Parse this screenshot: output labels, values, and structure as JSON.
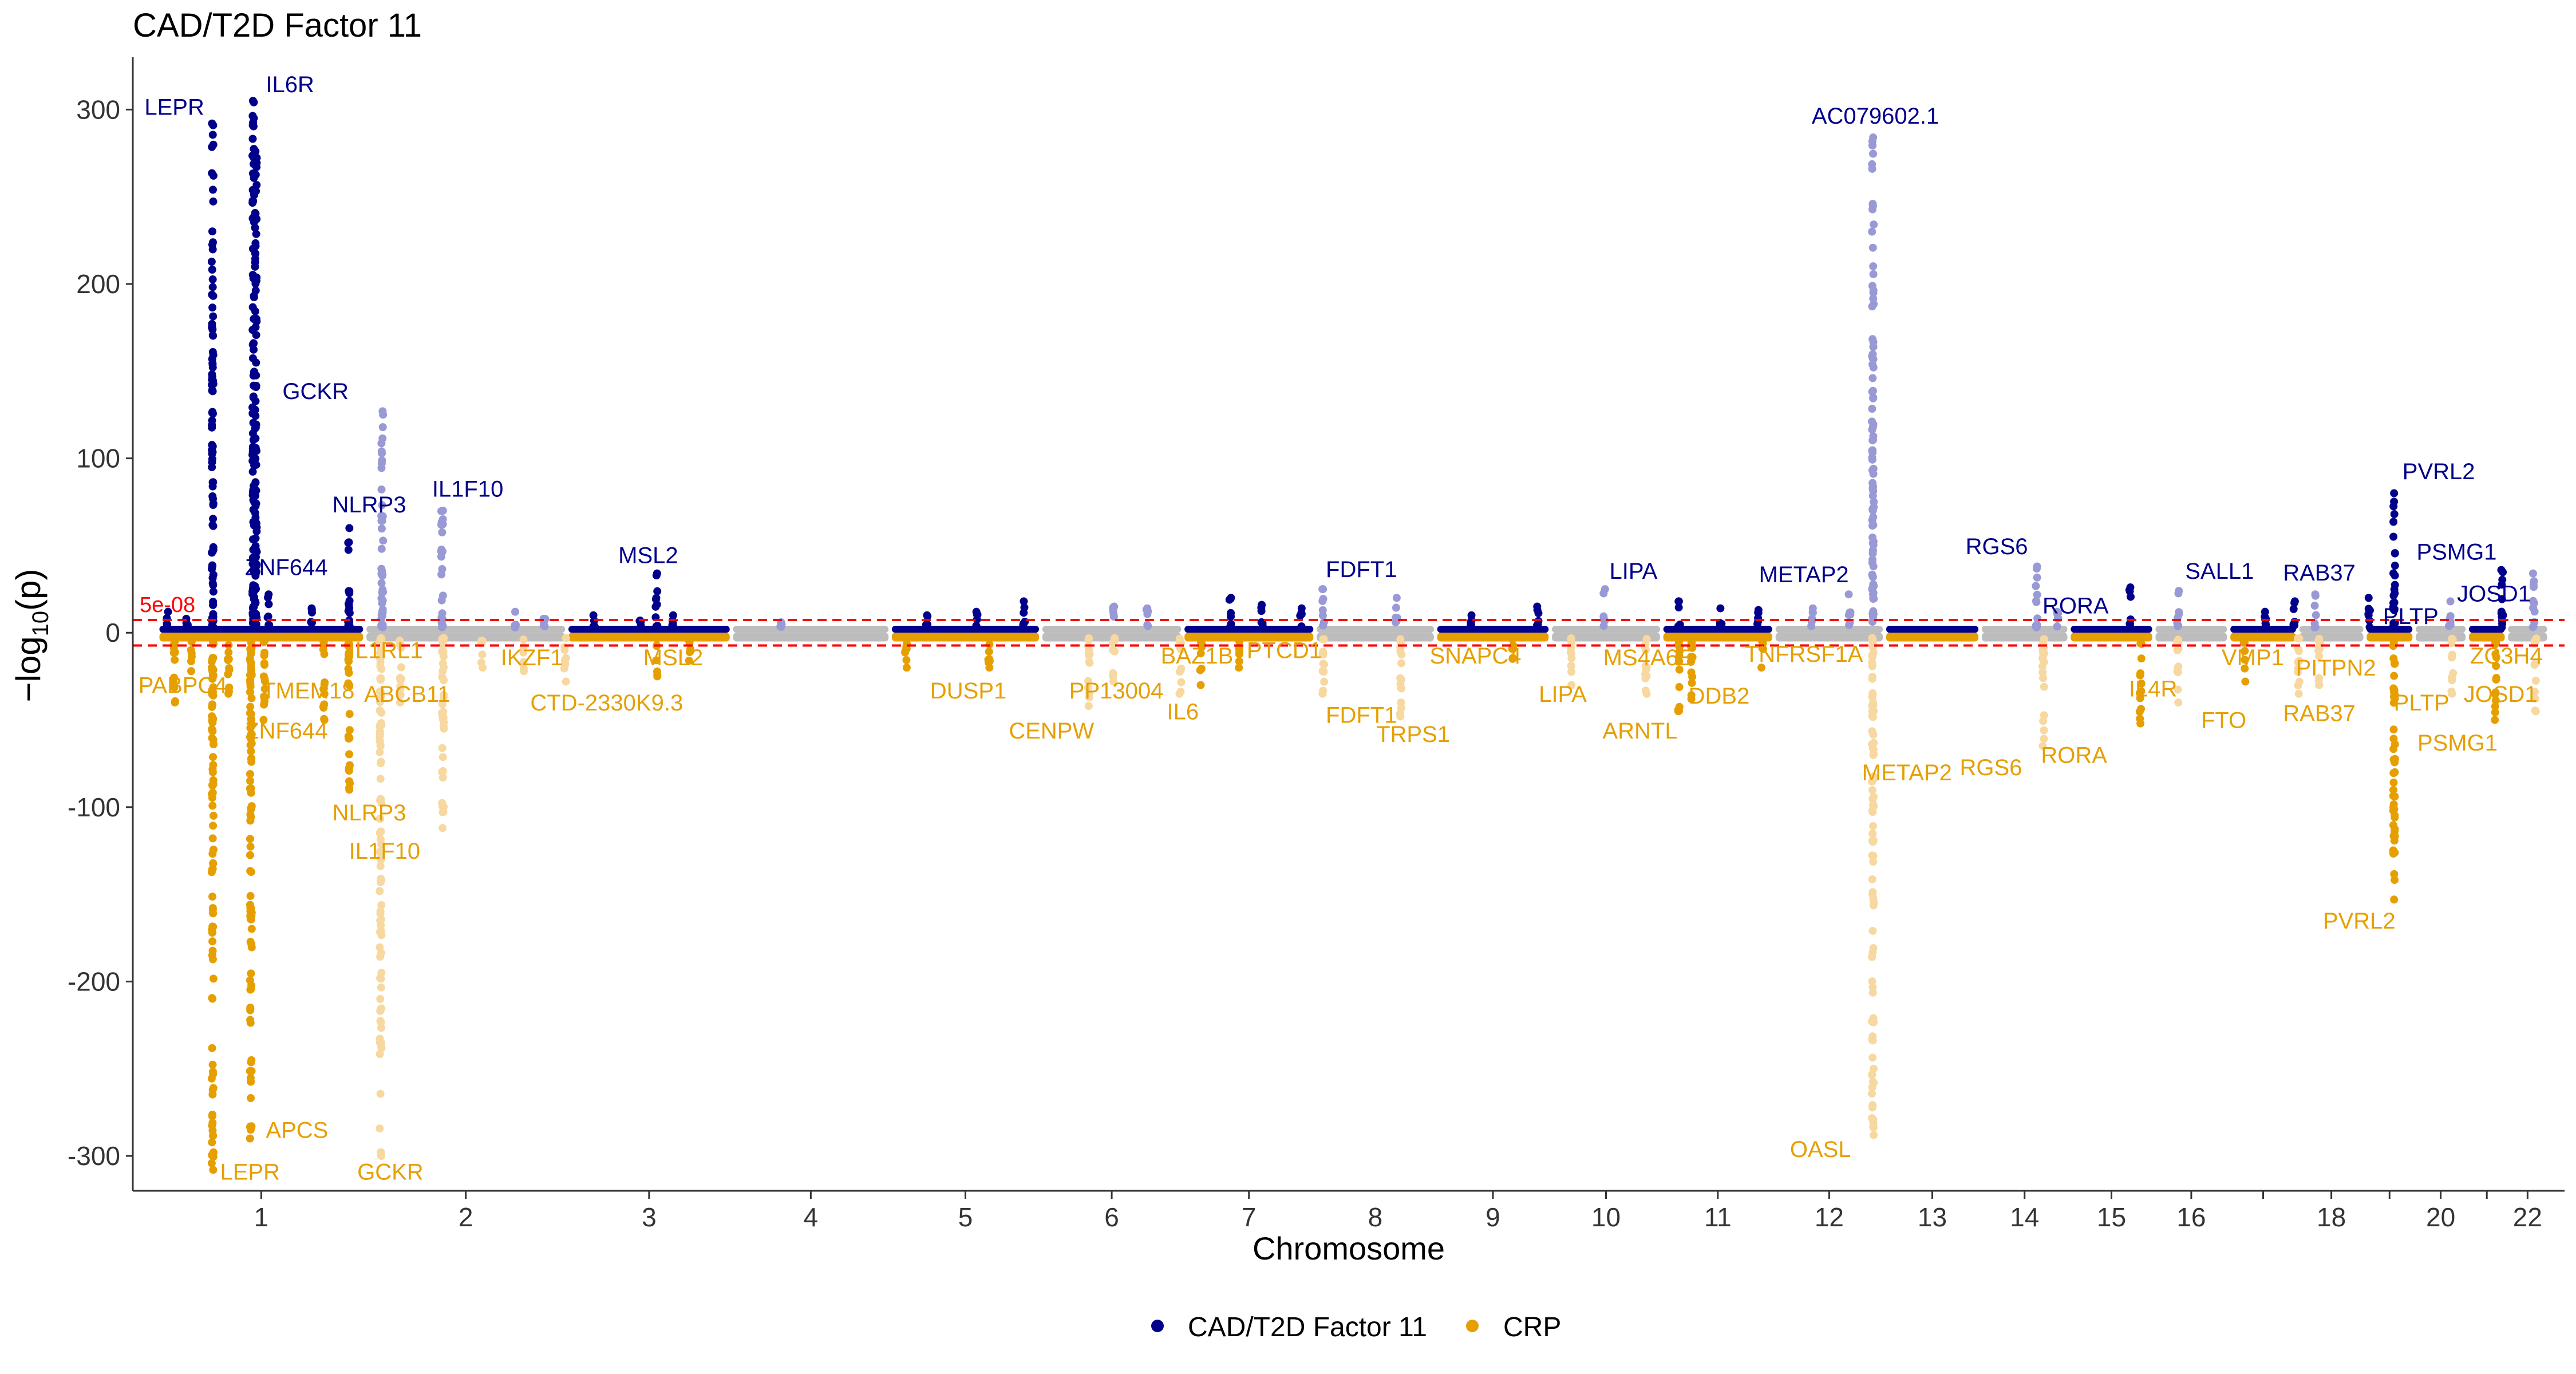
{
  "chart_data": {
    "type": "scatter",
    "subtype": "miami",
    "title": "CAD/T2D Factor 11",
    "xlabel": "Chromosome",
    "ylabel_prefix": "−log",
    "ylabel_sub": "10",
    "ylabel_suffix": "(p)",
    "ylim": [
      -320,
      330
    ],
    "yticks": [
      {
        "value": 300,
        "label": "300"
      },
      {
        "value": 200,
        "label": "200"
      },
      {
        "value": 100,
        "label": "100"
      },
      {
        "value": 0,
        "label": "0"
      },
      {
        "value": -100,
        "label": "-100"
      },
      {
        "value": -200,
        "label": "-200"
      },
      {
        "value": -300,
        "label": "-300"
      }
    ],
    "threshold": {
      "label": "5e-08",
      "value": 7.3
    },
    "colors": {
      "top_dark": "#00008B",
      "top_light": "#9999D6",
      "bottom_dark": "#E69F00",
      "bottom_light": "#F7D8A0",
      "baseline": "#BDBDBD",
      "threshold": "#FF0000",
      "axis": "#333333",
      "title": "#000000"
    },
    "chromosomes": [
      {
        "chr": "1",
        "start": 0,
        "end": 249,
        "label": "1",
        "tick": true
      },
      {
        "chr": "2",
        "start": 249,
        "end": 492,
        "label": "2",
        "tick": true
      },
      {
        "chr": "3",
        "start": 492,
        "end": 690,
        "label": "3",
        "tick": true
      },
      {
        "chr": "4",
        "start": 690,
        "end": 881,
        "label": "4",
        "tick": true
      },
      {
        "chr": "5",
        "start": 881,
        "end": 1062,
        "label": "5",
        "tick": true
      },
      {
        "chr": "6",
        "start": 1062,
        "end": 1233,
        "label": "6",
        "tick": true
      },
      {
        "chr": "7",
        "start": 1233,
        "end": 1392,
        "label": "7",
        "tick": true
      },
      {
        "chr": "8",
        "start": 1392,
        "end": 1537,
        "label": "8",
        "tick": false
      },
      {
        "chr": "9",
        "start": 1537,
        "end": 1675,
        "label": "9",
        "tick": true
      },
      {
        "chr": "10",
        "start": 1675,
        "end": 1809,
        "label": "10",
        "tick": true
      },
      {
        "chr": "11",
        "start": 1809,
        "end": 1944,
        "label": "11",
        "tick": true
      },
      {
        "chr": "12",
        "start": 1944,
        "end": 2077,
        "label": "12",
        "tick": true
      },
      {
        "chr": "13",
        "start": 2077,
        "end": 2192,
        "label": "13",
        "tick": true
      },
      {
        "chr": "14",
        "start": 2192,
        "end": 2299,
        "label": "14",
        "tick": true
      },
      {
        "chr": "15",
        "start": 2299,
        "end": 2401,
        "label": "15",
        "tick": true
      },
      {
        "chr": "16",
        "start": 2401,
        "end": 2491,
        "label": "16",
        "tick": true
      },
      {
        "chr": "17",
        "start": 2491,
        "end": 2574,
        "label": "",
        "tick": true
      },
      {
        "chr": "18",
        "start": 2574,
        "end": 2655,
        "label": "18",
        "tick": true
      },
      {
        "chr": "19",
        "start": 2655,
        "end": 2714,
        "label": "",
        "tick": true
      },
      {
        "chr": "20",
        "start": 2714,
        "end": 2778,
        "label": "20",
        "tick": true
      },
      {
        "chr": "21",
        "start": 2778,
        "end": 2825,
        "label": "",
        "tick": true
      },
      {
        "chr": "22",
        "start": 2825,
        "end": 2876,
        "label": "22",
        "tick": true
      }
    ],
    "xlim": [
      -30,
      2895
    ],
    "series": [
      {
        "name": "CAD/T2D Factor 11",
        "direction": "up",
        "background_height": 4,
        "peaks": [
          {
            "pos": 12,
            "max": 12
          },
          {
            "pos": 35,
            "max": 8
          },
          {
            "pos": 66,
            "max": 292
          },
          {
            "pos": 115,
            "max": 305
          },
          {
            "pos": 118,
            "max": 276
          },
          {
            "pos": 133,
            "max": 22
          },
          {
            "pos": 185,
            "max": 14
          },
          {
            "pos": 230,
            "max": 60
          },
          {
            "pos": 270,
            "max": 127
          },
          {
            "pos": 342,
            "max": 70
          },
          {
            "pos": 430,
            "max": 12
          },
          {
            "pos": 465,
            "max": 8
          },
          {
            "pos": 525,
            "max": 10
          },
          {
            "pos": 580,
            "max": 7
          },
          {
            "pos": 600,
            "max": 34
          },
          {
            "pos": 620,
            "max": 10
          },
          {
            "pos": 750,
            "max": 6
          },
          {
            "pos": 925,
            "max": 10
          },
          {
            "pos": 985,
            "max": 12
          },
          {
            "pos": 1042,
            "max": 18
          },
          {
            "pos": 1150,
            "max": 15
          },
          {
            "pos": 1190,
            "max": 14
          },
          {
            "pos": 1290,
            "max": 20
          },
          {
            "pos": 1328,
            "max": 16
          },
          {
            "pos": 1375,
            "max": 14
          },
          {
            "pos": 1402,
            "max": 25
          },
          {
            "pos": 1490,
            "max": 20
          },
          {
            "pos": 1580,
            "max": 10
          },
          {
            "pos": 1660,
            "max": 15
          },
          {
            "pos": 1740,
            "max": 25
          },
          {
            "pos": 1830,
            "max": 18
          },
          {
            "pos": 1880,
            "max": 14
          },
          {
            "pos": 1925,
            "max": 13
          },
          {
            "pos": 1990,
            "max": 14
          },
          {
            "pos": 2035,
            "max": 22
          },
          {
            "pos": 2063,
            "max": 284
          },
          {
            "pos": 2260,
            "max": 38
          },
          {
            "pos": 2285,
            "max": 12
          },
          {
            "pos": 2372,
            "max": 26
          },
          {
            "pos": 2430,
            "max": 24
          },
          {
            "pos": 2535,
            "max": 12
          },
          {
            "pos": 2570,
            "max": 18
          },
          {
            "pos": 2595,
            "max": 22
          },
          {
            "pos": 2660,
            "max": 20
          },
          {
            "pos": 2690,
            "max": 80
          },
          {
            "pos": 2757,
            "max": 18
          },
          {
            "pos": 2820,
            "max": 36
          },
          {
            "pos": 2858,
            "max": 34
          }
        ],
        "labels": [
          {
            "text": "LEPR",
            "pos": 20,
            "value": 297,
            "anchor": "middle"
          },
          {
            "text": "IL6R",
            "pos": 130,
            "value": 310,
            "anchor": "start"
          },
          {
            "text": "GCKR",
            "pos": 150,
            "value": 134,
            "anchor": "start"
          },
          {
            "text": "NLRP3",
            "pos": 210,
            "value": 69,
            "anchor": "start"
          },
          {
            "text": "IL1F10",
            "pos": 330,
            "value": 78,
            "anchor": "start"
          },
          {
            "text": "ZNF644",
            "pos": 105,
            "value": 33,
            "anchor": "start"
          },
          {
            "text": "MSL2",
            "pos": 590,
            "value": 40,
            "anchor": "middle"
          },
          {
            "text": "FDFT1",
            "pos": 1405,
            "value": 32,
            "anchor": "start"
          },
          {
            "text": "LIPA",
            "pos": 1775,
            "value": 31,
            "anchor": "middle"
          },
          {
            "text": "METAP2",
            "pos": 1980,
            "value": 29,
            "anchor": "middle"
          },
          {
            "text": "AC079602.1",
            "pos": 2066,
            "value": 292,
            "anchor": "middle"
          },
          {
            "text": "RGS6",
            "pos": 2212,
            "value": 45,
            "anchor": "middle"
          },
          {
            "text": "RORA",
            "pos": 2267,
            "value": 11,
            "anchor": "start"
          },
          {
            "text": "SALL1",
            "pos": 2480,
            "value": 31,
            "anchor": "middle"
          },
          {
            "text": "RAB37",
            "pos": 2600,
            "value": 30,
            "anchor": "middle"
          },
          {
            "text": "PLTP",
            "pos": 2710,
            "value": 5,
            "anchor": "middle"
          },
          {
            "text": "PVRL2",
            "pos": 2700,
            "value": 88,
            "anchor": "start"
          },
          {
            "text": "PSMG1",
            "pos": 2717,
            "value": 42,
            "anchor": "start"
          },
          {
            "text": "JOSD1",
            "pos": 2810,
            "value": 18,
            "anchor": "middle"
          }
        ]
      },
      {
        "name": "CRP",
        "direction": "down",
        "background_height": 5,
        "peaks": [
          {
            "pos": 20,
            "max": 40
          },
          {
            "pos": 40,
            "max": 22
          },
          {
            "pos": 66,
            "max": 308
          },
          {
            "pos": 85,
            "max": 35
          },
          {
            "pos": 112,
            "max": 290
          },
          {
            "pos": 128,
            "max": 50
          },
          {
            "pos": 200,
            "max": 50
          },
          {
            "pos": 230,
            "max": 90
          },
          {
            "pos": 268,
            "max": 300
          },
          {
            "pos": 292,
            "max": 40
          },
          {
            "pos": 343,
            "max": 112
          },
          {
            "pos": 390,
            "max": 20
          },
          {
            "pos": 440,
            "max": 22
          },
          {
            "pos": 490,
            "max": 28
          },
          {
            "pos": 600,
            "max": 25
          },
          {
            "pos": 640,
            "max": 16
          },
          {
            "pos": 900,
            "max": 20
          },
          {
            "pos": 1000,
            "max": 20
          },
          {
            "pos": 1120,
            "max": 42
          },
          {
            "pos": 1150,
            "max": 28
          },
          {
            "pos": 1230,
            "max": 35
          },
          {
            "pos": 1255,
            "max": 30
          },
          {
            "pos": 1300,
            "max": 20
          },
          {
            "pos": 1402,
            "max": 35
          },
          {
            "pos": 1495,
            "max": 48
          },
          {
            "pos": 1630,
            "max": 15
          },
          {
            "pos": 1700,
            "max": 30
          },
          {
            "pos": 1790,
            "max": 35
          },
          {
            "pos": 1830,
            "max": 45
          },
          {
            "pos": 1845,
            "max": 38
          },
          {
            "pos": 1930,
            "max": 20
          },
          {
            "pos": 2063,
            "max": 288
          },
          {
            "pos": 2268,
            "max": 65
          },
          {
            "pos": 2385,
            "max": 52
          },
          {
            "pos": 2430,
            "max": 40
          },
          {
            "pos": 2510,
            "max": 28
          },
          {
            "pos": 2575,
            "max": 35
          },
          {
            "pos": 2600,
            "max": 30
          },
          {
            "pos": 2690,
            "max": 153
          },
          {
            "pos": 2760,
            "max": 35
          },
          {
            "pos": 2812,
            "max": 50
          },
          {
            "pos": 2860,
            "max": 45
          }
        ],
        "labels": [
          {
            "text": "PABPC4",
            "pos": 30,
            "value": -30,
            "anchor": "middle"
          },
          {
            "text": "ZNF644",
            "pos": 105,
            "value": -56,
            "anchor": "start"
          },
          {
            "text": "TMEM18",
            "pos": 125,
            "value": -33,
            "anchor": "start"
          },
          {
            "text": "IL1RL1",
            "pos": 230,
            "value": -10,
            "anchor": "start"
          },
          {
            "text": "ABCB11",
            "pos": 300,
            "value": -35,
            "anchor": "middle"
          },
          {
            "text": "IKZF1",
            "pos": 450,
            "value": -14,
            "anchor": "middle"
          },
          {
            "text": "MSL2",
            "pos": 620,
            "value": -14,
            "anchor": "middle"
          },
          {
            "text": "CTD-2330K9.3",
            "pos": 540,
            "value": -40,
            "anchor": "middle"
          },
          {
            "text": "NLRP3",
            "pos": 210,
            "value": -103,
            "anchor": "start"
          },
          {
            "text": "IL1F10",
            "pos": 230,
            "value": -125,
            "anchor": "start"
          },
          {
            "text": "APCS",
            "pos": 130,
            "value": -285,
            "anchor": "start"
          },
          {
            "text": "LEPR",
            "pos": 75,
            "value": -309,
            "anchor": "start"
          },
          {
            "text": "GCKR",
            "pos": 240,
            "value": -309,
            "anchor": "start"
          },
          {
            "text": "DUSP1",
            "pos": 975,
            "value": -33,
            "anchor": "middle"
          },
          {
            "text": "CENPW",
            "pos": 1075,
            "value": -56,
            "anchor": "middle"
          },
          {
            "text": "PP13004",
            "pos": 1153,
            "value": -33,
            "anchor": "middle"
          },
          {
            "text": "IL6",
            "pos": 1233,
            "value": -45,
            "anchor": "middle"
          },
          {
            "text": "BAZ1B",
            "pos": 1250,
            "value": -13,
            "anchor": "middle"
          },
          {
            "text": "PTCD1",
            "pos": 1355,
            "value": -10,
            "anchor": "middle"
          },
          {
            "text": "FDFT1",
            "pos": 1405,
            "value": -47,
            "anchor": "start"
          },
          {
            "text": "TRPS1",
            "pos": 1510,
            "value": -58,
            "anchor": "middle"
          },
          {
            "text": "SNAPC4",
            "pos": 1585,
            "value": -13,
            "anchor": "middle"
          },
          {
            "text": "LIPA",
            "pos": 1690,
            "value": -35,
            "anchor": "middle"
          },
          {
            "text": "MS4A6E",
            "pos": 1793,
            "value": -14,
            "anchor": "middle"
          },
          {
            "text": "ARNTL",
            "pos": 1783,
            "value": -56,
            "anchor": "middle"
          },
          {
            "text": "DDB2",
            "pos": 1878,
            "value": -36,
            "anchor": "middle"
          },
          {
            "text": "TNFRSF1A",
            "pos": 1980,
            "value": -12,
            "anchor": "middle"
          },
          {
            "text": "METAP2",
            "pos": 2050,
            "value": -80,
            "anchor": "start"
          },
          {
            "text": "OASL",
            "pos": 2000,
            "value": -296,
            "anchor": "middle"
          },
          {
            "text": "RGS6",
            "pos": 2205,
            "value": -77,
            "anchor": "middle"
          },
          {
            "text": "RORA",
            "pos": 2305,
            "value": -70,
            "anchor": "middle"
          },
          {
            "text": "IL4R",
            "pos": 2400,
            "value": -32,
            "anchor": "middle"
          },
          {
            "text": "VMP1",
            "pos": 2520,
            "value": -14,
            "anchor": "middle"
          },
          {
            "text": "FTO",
            "pos": 2485,
            "value": -50,
            "anchor": "middle"
          },
          {
            "text": "PITPN2",
            "pos": 2620,
            "value": -20,
            "anchor": "middle"
          },
          {
            "text": "RAB37",
            "pos": 2600,
            "value": -46,
            "anchor": "middle"
          },
          {
            "text": "PLTP",
            "pos": 2723,
            "value": -40,
            "anchor": "middle"
          },
          {
            "text": "PSMG1",
            "pos": 2718,
            "value": -63,
            "anchor": "start"
          },
          {
            "text": "JOSD1",
            "pos": 2818,
            "value": -35,
            "anchor": "middle"
          },
          {
            "text": "ZC3H4",
            "pos": 2825,
            "value": -13,
            "anchor": "middle"
          },
          {
            "text": "PVRL2",
            "pos": 2648,
            "value": -165,
            "anchor": "middle"
          }
        ]
      }
    ],
    "legend": {
      "position": "bottom",
      "items": [
        {
          "label": "CAD/T2D Factor 11",
          "color": "#00008B"
        },
        {
          "label": "CRP",
          "color": "#E69F00"
        }
      ]
    }
  }
}
